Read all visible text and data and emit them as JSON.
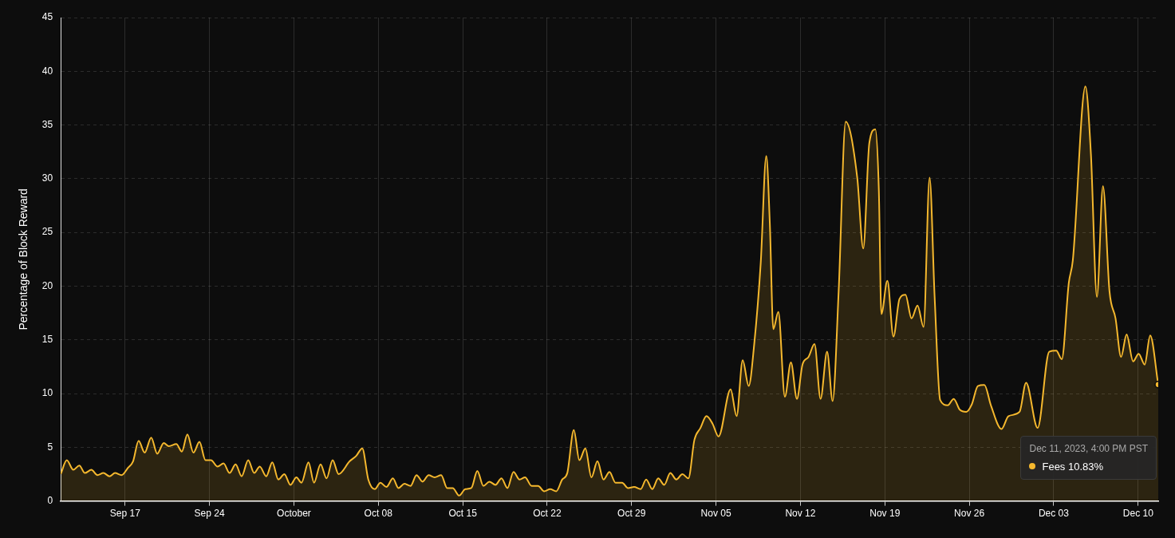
{
  "chart_data": {
    "type": "area",
    "ylabel": "Percentage of Block Reward",
    "x": [
      "2023-09-11T16:00",
      "2023-09-12T04:00",
      "2023-09-12T17:00",
      "2023-09-13T05:00",
      "2023-09-13T16:00",
      "2023-09-14T05:00",
      "2023-09-14T17:00",
      "2023-09-15T05:00",
      "2023-09-15T17:00",
      "2023-09-16T04:00",
      "2023-09-16T17:00",
      "2023-09-17T06:00",
      "2023-09-17T16:00",
      "2023-09-18T03:00",
      "2023-09-18T15:00",
      "2023-09-19T04:00",
      "2023-09-19T16:00",
      "2023-09-20T05:00",
      "2023-09-20T15:00",
      "2023-09-21T06:00",
      "2023-09-21T17:00",
      "2023-09-22T04:00",
      "2023-09-22T16:00",
      "2023-09-23T04:00",
      "2023-09-23T16:00",
      "2023-09-24T03:00",
      "2023-09-24T16:00",
      "2023-09-25T04:00",
      "2023-09-25T16:00",
      "2023-09-26T04:00",
      "2023-09-26T16:00",
      "2023-09-27T05:00",
      "2023-09-27T17:00",
      "2023-09-28T04:00",
      "2023-09-28T17:00",
      "2023-09-29T05:00",
      "2023-09-29T17:00",
      "2023-09-30T05:00",
      "2023-09-30T17:00",
      "2023-10-01T05:00",
      "2023-10-01T15:00",
      "2023-10-02T05:00",
      "2023-10-02T16:00",
      "2023-10-03T05:00",
      "2023-10-03T17:00",
      "2023-10-04T05:00",
      "2023-10-04T17:00",
      "2023-10-05T15:00",
      "2023-10-06T04:00",
      "2023-10-06T16:00",
      "2023-10-07T04:00",
      "2023-10-07T17:00",
      "2023-10-08T04:00",
      "2023-10-08T16:00",
      "2023-10-09T05:00",
      "2023-10-09T16:00",
      "2023-10-10T04:00",
      "2023-10-10T16:00",
      "2023-10-11T04:00",
      "2023-10-11T16:00",
      "2023-10-12T04:00",
      "2023-10-12T16:00",
      "2023-10-13T05:00",
      "2023-10-13T17:00",
      "2023-10-14T04:00",
      "2023-10-14T17:00",
      "2023-10-15T05:00",
      "2023-10-15T17:00",
      "2023-10-16T05:00",
      "2023-10-16T17:00",
      "2023-10-17T05:00",
      "2023-10-17T17:00",
      "2023-10-18T05:00",
      "2023-10-18T17:00",
      "2023-10-19T05:00",
      "2023-10-19T17:00",
      "2023-10-20T04:00",
      "2023-10-20T17:00",
      "2023-10-21T06:00",
      "2023-10-21T18:00",
      "2023-10-22T06:00",
      "2023-10-22T18:00",
      "2023-10-23T06:00",
      "2023-10-23T16:00",
      "2023-10-24T05:00",
      "2023-10-24T16:00",
      "2023-10-25T04:00",
      "2023-10-25T16:00",
      "2023-10-26T04:00",
      "2023-10-26T16:00",
      "2023-10-27T04:00",
      "2023-10-27T16:00",
      "2023-10-28T05:00",
      "2023-10-28T17:00",
      "2023-10-29T05:00",
      "2023-10-29T18:00",
      "2023-10-30T05:00",
      "2023-10-30T17:00",
      "2023-10-31T05:00",
      "2023-10-31T17:00",
      "2023-11-01T05:00",
      "2023-11-01T17:00",
      "2023-11-02T05:00",
      "2023-11-02T17:00",
      "2023-11-03T05:00",
      "2023-11-03T17:00",
      "2023-11-04T05:00",
      "2023-11-04T17:00",
      "2023-11-05T05:00",
      "2023-11-06T05:00",
      "2023-11-06T17:00",
      "2023-11-07T05:00",
      "2023-11-07T17:00",
      "2023-11-08T04:00",
      "2023-11-08T17:00",
      "2023-11-09T04:00",
      "2023-11-09T11:00",
      "2023-11-09T18:00",
      "2023-11-10T04:00",
      "2023-11-10T17:00",
      "2023-11-11T05:00",
      "2023-11-11T17:00",
      "2023-11-12T04:00",
      "2023-11-12T16:00",
      "2023-11-13T04:00",
      "2023-11-13T16:00",
      "2023-11-14T05:00",
      "2023-11-14T16:00",
      "2023-11-15T04:00",
      "2023-11-15T18:00",
      "2023-11-16T17:00",
      "2023-11-17T05:00",
      "2023-11-17T17:00",
      "2023-11-18T05:00",
      "2023-11-18T12:00",
      "2023-11-18T17:00",
      "2023-11-19T05:00",
      "2023-11-19T17:00",
      "2023-11-20T05:00",
      "2023-11-20T17:00",
      "2023-11-21T05:00",
      "2023-11-21T17:00",
      "2023-11-22T05:00",
      "2023-11-22T17:00",
      "2023-11-23T03:00",
      "2023-11-23T14:00",
      "2023-11-24T05:00",
      "2023-11-24T17:00",
      "2023-11-25T05:00",
      "2023-11-25T18:00",
      "2023-11-26T05:00",
      "2023-11-26T17:00",
      "2023-11-27T06:00",
      "2023-11-27T19:00",
      "2023-11-28T16:00",
      "2023-11-29T06:00",
      "2023-11-30T04:00",
      "2023-11-30T17:00",
      "2023-12-01T16:00",
      "2023-12-02T15:00",
      "2023-12-03T05:00",
      "2023-12-03T16:00",
      "2023-12-04T06:00",
      "2023-12-04T14:00",
      "2023-12-05T15:00",
      "2023-12-06T02:00",
      "2023-12-06T14:00",
      "2023-12-07T02:00",
      "2023-12-07T15:00",
      "2023-12-08T03:00",
      "2023-12-08T14:00",
      "2023-12-09T01:00",
      "2023-12-09T14:00",
      "2023-12-10T01:00",
      "2023-12-10T13:00",
      "2023-12-11T00:00",
      "2023-12-11T16:00"
    ],
    "series": [
      {
        "name": "Fees",
        "color": "#f5b82e",
        "values": [
          2.5,
          3.8,
          2.9,
          3.3,
          2.6,
          2.9,
          2.4,
          2.6,
          2.3,
          2.6,
          2.4,
          3.1,
          3.7,
          5.6,
          4.5,
          5.9,
          4.4,
          5.4,
          5.1,
          5.3,
          4.6,
          6.2,
          4.5,
          5.5,
          3.8,
          3.8,
          3.2,
          3.5,
          2.6,
          3.4,
          2.3,
          3.8,
          2.6,
          3.2,
          2.3,
          3.6,
          2.0,
          2.5,
          1.5,
          2.2,
          1.7,
          3.6,
          1.7,
          3.4,
          2.1,
          3.8,
          2.5,
          3.7,
          4.2,
          4.9,
          2.0,
          1.1,
          1.7,
          1.3,
          2.1,
          1.2,
          1.6,
          1.4,
          2.4,
          1.8,
          2.4,
          2.2,
          2.4,
          1.2,
          1.2,
          0.5,
          1.1,
          1.2,
          2.8,
          1.4,
          1.8,
          1.5,
          2.1,
          1.2,
          2.7,
          2.0,
          2.2,
          1.4,
          1.4,
          0.9,
          1.1,
          0.9,
          2.0,
          2.6,
          6.6,
          3.8,
          4.9,
          2.2,
          3.7,
          2.0,
          2.7,
          1.7,
          1.7,
          1.2,
          1.3,
          1.1,
          2.0,
          1.1,
          2.1,
          1.5,
          2.6,
          2.0,
          2.5,
          2.1,
          5.7,
          6.8,
          7.9,
          7.2,
          6.0,
          10.4,
          7.9,
          13.1,
          10.7,
          14.6,
          22.2,
          32.1,
          25.9,
          16.0,
          17.6,
          9.7,
          12.9,
          9.5,
          12.7,
          13.4,
          14.6,
          9.5,
          13.9,
          9.3,
          19.5,
          35.3,
          30.1,
          23.5,
          33.3,
          34.6,
          28.9,
          17.4,
          20.5,
          15.3,
          18.8,
          19.2,
          17.0,
          18.2,
          16.2,
          30.1,
          19.0,
          9.4,
          8.9,
          9.5,
          8.5,
          8.3,
          9.0,
          10.7,
          10.8,
          8.9,
          6.7,
          7.9,
          8.3,
          11.0,
          6.8,
          13.9,
          14.0,
          13.2,
          20.3,
          22.4,
          38.6,
          32.3,
          19.0,
          29.3,
          19.5,
          17.0,
          13.4,
          15.5,
          13.0,
          13.7,
          12.7,
          15.4,
          10.83
        ]
      }
    ],
    "xlim": [
      "2023-09-11T16:00",
      "2023-12-11T16:00"
    ],
    "xticks": [
      {
        "value": "2023-09-17",
        "label": "Sep 17"
      },
      {
        "value": "2023-09-24",
        "label": "Sep 24"
      },
      {
        "value": "2023-10-01",
        "label": "October"
      },
      {
        "value": "2023-10-08",
        "label": "Oct 08"
      },
      {
        "value": "2023-10-15",
        "label": "Oct 15"
      },
      {
        "value": "2023-10-22",
        "label": "Oct 22"
      },
      {
        "value": "2023-10-29",
        "label": "Oct 29"
      },
      {
        "value": "2023-11-05",
        "label": "Nov 05"
      },
      {
        "value": "2023-11-12",
        "label": "Nov 12"
      },
      {
        "value": "2023-11-19",
        "label": "Nov 19"
      },
      {
        "value": "2023-11-26",
        "label": "Nov 26"
      },
      {
        "value": "2023-12-03",
        "label": "Dec 03"
      },
      {
        "value": "2023-12-10",
        "label": "Dec 10"
      }
    ],
    "ylim": [
      0,
      45
    ],
    "yticks": [
      0,
      5,
      10,
      15,
      20,
      25,
      30,
      35,
      40,
      45
    ],
    "grid": true,
    "marker": "none",
    "line_style": "solid",
    "annotations": [
      "Dec 11, 2023, 4:00 PM PST",
      "10.83%"
    ]
  }
}
